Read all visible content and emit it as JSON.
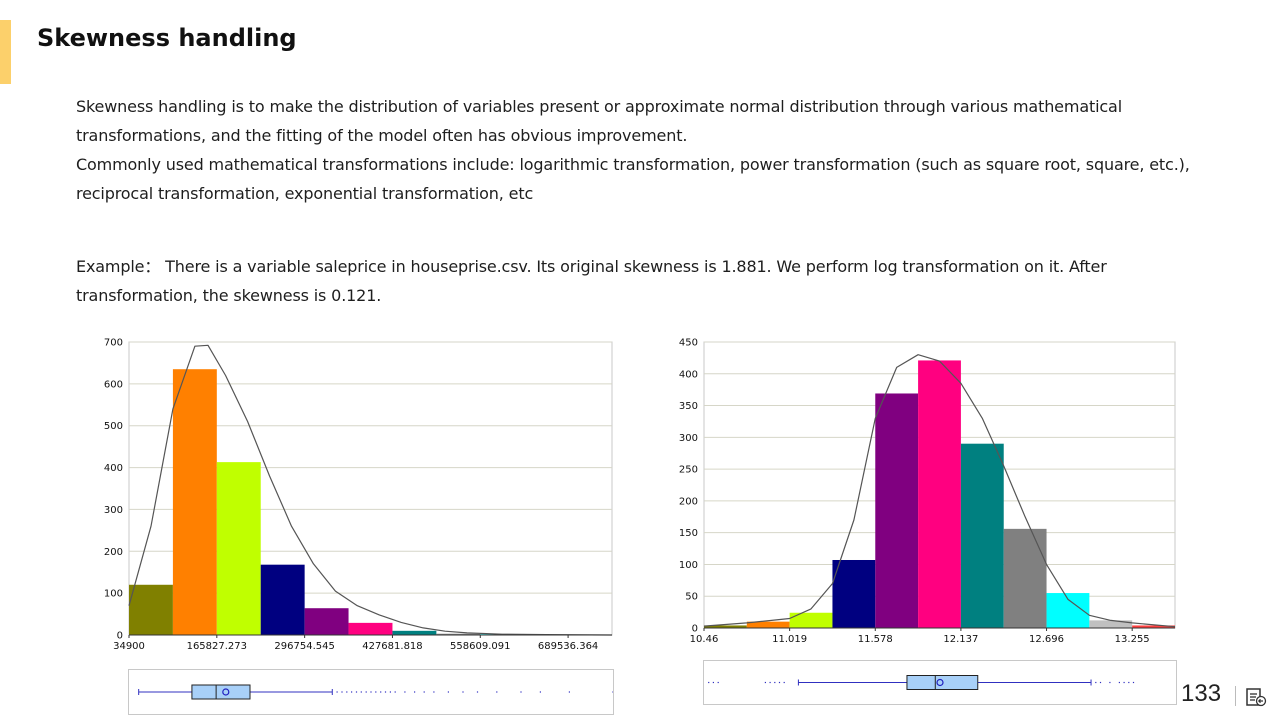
{
  "slide": {
    "title": "Skewness handling",
    "accent_color": "#fcd06b",
    "page_number": "133",
    "nav_icon": "exit-slide-icon"
  },
  "text": {
    "intro_line1": "Skewness handling is to make the distribution of variables present or approximate normal distribution through various mathematical transformations, and the fitting of the model often has obvious improvement.",
    "intro_line2": "Commonly used mathematical transformations include: logarithmic transformation, power transformation (such as square root, square, etc.), reciprocal transformation, exponential transformation, etc",
    "example": "Example：  There is a variable saleprice in houseprise.csv.  Its original skewness is 1.881.  We perform log transformation on it. After transformation, the skewness is 0.121."
  },
  "chart_data": [
    {
      "type": "bar",
      "title": "",
      "xlabel": "",
      "ylabel": "",
      "ylim": [
        0,
        700
      ],
      "y_ticks": [
        0,
        100,
        200,
        300,
        400,
        500,
        600,
        700
      ],
      "x_tick_labels": [
        "34900",
        "165827.273",
        "296754.545",
        "427681.818",
        "558609.091",
        "689536.364"
      ],
      "bins": 11,
      "values": [
        120,
        635,
        413,
        168,
        64,
        29,
        10,
        3,
        2,
        1,
        1
      ],
      "colors": [
        "#808000",
        "#ff8000",
        "#c0ff00",
        "#000080",
        "#800080",
        "#ff0080",
        "#008080",
        "#808080",
        "#00ffff",
        "#c0c0c0",
        "#ff4040"
      ],
      "density_curve": [
        [
          0.0,
          70
        ],
        [
          0.5,
          260
        ],
        [
          1.0,
          540
        ],
        [
          1.5,
          690
        ],
        [
          1.8,
          692
        ],
        [
          2.2,
          620
        ],
        [
          2.7,
          510
        ],
        [
          3.2,
          380
        ],
        [
          3.7,
          260
        ],
        [
          4.2,
          170
        ],
        [
          4.7,
          105
        ],
        [
          5.2,
          70
        ],
        [
          5.7,
          48
        ],
        [
          6.2,
          30
        ],
        [
          6.7,
          17
        ],
        [
          7.2,
          9
        ],
        [
          7.7,
          5
        ],
        [
          8.5,
          2
        ],
        [
          9.5,
          1
        ],
        [
          11.0,
          0
        ]
      ],
      "grid": true,
      "legend": "none",
      "boxplot": {
        "min": 0.02,
        "q1": 0.13,
        "median": 0.18,
        "mean": 0.2,
        "q3": 0.25,
        "max": 0.42
      }
    },
    {
      "type": "bar",
      "title": "",
      "xlabel": "",
      "ylabel": "",
      "ylim": [
        0,
        450
      ],
      "y_ticks": [
        0,
        50,
        100,
        150,
        200,
        250,
        300,
        350,
        400,
        450
      ],
      "x_tick_labels": [
        "10.46",
        "11.019",
        "11.578",
        "12.137",
        "12.696",
        "13.255"
      ],
      "bins": 11,
      "values": [
        4,
        10,
        24,
        107,
        369,
        421,
        290,
        156,
        55,
        12,
        4
      ],
      "colors": [
        "#808000",
        "#ff8000",
        "#c0ff00",
        "#000080",
        "#800080",
        "#ff0080",
        "#008080",
        "#808080",
        "#00ffff",
        "#c0c0c0",
        "#ff4040"
      ],
      "density_curve": [
        [
          0.0,
          3
        ],
        [
          1.0,
          8
        ],
        [
          2.0,
          15
        ],
        [
          2.5,
          30
        ],
        [
          3.0,
          70
        ],
        [
          3.5,
          170
        ],
        [
          4.0,
          330
        ],
        [
          4.5,
          410
        ],
        [
          5.0,
          430
        ],
        [
          5.5,
          420
        ],
        [
          6.0,
          385
        ],
        [
          6.5,
          330
        ],
        [
          7.0,
          255
        ],
        [
          7.5,
          175
        ],
        [
          8.0,
          100
        ],
        [
          8.5,
          45
        ],
        [
          9.0,
          20
        ],
        [
          9.5,
          12
        ],
        [
          10.0,
          8
        ],
        [
          11.0,
          2
        ]
      ],
      "grid": true,
      "legend": "none",
      "boxplot": {
        "min": 0.2,
        "q1": 0.43,
        "median": 0.49,
        "mean": 0.5,
        "q3": 0.58,
        "max": 0.82
      }
    }
  ]
}
